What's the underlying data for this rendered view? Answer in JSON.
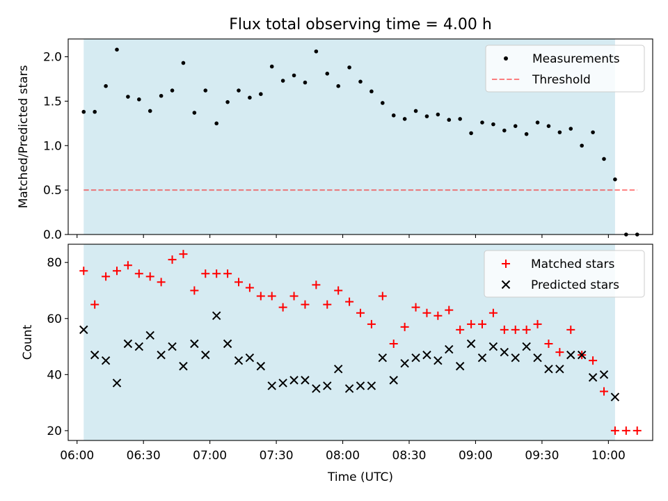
{
  "chart_data": [
    {
      "type": "scatter",
      "title": "Flux total observing time = 4.00 h",
      "ylabel": "Matched/Predicted stars",
      "ylim": [
        0,
        2.2
      ],
      "yticks": [
        "0.0",
        "0.5",
        "1.0",
        "1.5",
        "2.0"
      ],
      "shaded_span": [
        "06:03",
        "10:03"
      ],
      "shade_color": "#add8e6",
      "threshold": 0.5,
      "series": [
        {
          "name": "Measurements",
          "color": "#000000",
          "marker": "dot",
          "points": [
            [
              "06:03",
              1.38
            ],
            [
              "06:08",
              1.38
            ],
            [
              "06:13",
              1.67
            ],
            [
              "06:18",
              2.08
            ],
            [
              "06:23",
              1.55
            ],
            [
              "06:28",
              1.52
            ],
            [
              "06:33",
              1.39
            ],
            [
              "06:38",
              1.56
            ],
            [
              "06:43",
              1.62
            ],
            [
              "06:48",
              1.93
            ],
            [
              "06:53",
              1.37
            ],
            [
              "06:58",
              1.62
            ],
            [
              "07:03",
              1.25
            ],
            [
              "07:08",
              1.49
            ],
            [
              "07:13",
              1.62
            ],
            [
              "07:18",
              1.54
            ],
            [
              "07:23",
              1.58
            ],
            [
              "07:28",
              1.89
            ],
            [
              "07:33",
              1.73
            ],
            [
              "07:38",
              1.79
            ],
            [
              "07:43",
              1.71
            ],
            [
              "07:48",
              2.06
            ],
            [
              "07:53",
              1.81
            ],
            [
              "07:58",
              1.67
            ],
            [
              "08:03",
              1.88
            ],
            [
              "08:08",
              1.72
            ],
            [
              "08:13",
              1.61
            ],
            [
              "08:18",
              1.48
            ],
            [
              "08:23",
              1.34
            ],
            [
              "08:28",
              1.3
            ],
            [
              "08:33",
              1.39
            ],
            [
              "08:38",
              1.33
            ],
            [
              "08:43",
              1.35
            ],
            [
              "08:48",
              1.29
            ],
            [
              "08:53",
              1.3
            ],
            [
              "08:58",
              1.14
            ],
            [
              "09:03",
              1.26
            ],
            [
              "09:08",
              1.24
            ],
            [
              "09:13",
              1.17
            ],
            [
              "09:18",
              1.22
            ],
            [
              "09:23",
              1.13
            ],
            [
              "09:28",
              1.26
            ],
            [
              "09:33",
              1.22
            ],
            [
              "09:38",
              1.15
            ],
            [
              "09:43",
              1.19
            ],
            [
              "09:48",
              1.0
            ],
            [
              "09:53",
              1.15
            ],
            [
              "09:58",
              0.85
            ],
            [
              "10:03",
              0.62
            ],
            [
              "10:08",
              0.0
            ],
            [
              "10:13",
              0.0
            ]
          ]
        },
        {
          "name": "Threshold",
          "color": "#ff0000",
          "opacity": 0.5,
          "style": "dashed",
          "points": [
            [
              "06:03",
              0.5
            ],
            [
              "10:13",
              0.5
            ]
          ]
        }
      ],
      "legend": "top-right"
    },
    {
      "type": "scatter",
      "xlabel": "Time (UTC)",
      "ylabel": "Count",
      "ylim": [
        16.5,
        86.5
      ],
      "yticks": [
        "20",
        "40",
        "60",
        "80"
      ],
      "xticks": [
        "06:00",
        "06:30",
        "07:00",
        "07:30",
        "08:00",
        "08:30",
        "09:00",
        "09:30",
        "10:00"
      ],
      "x": [
        "06:03",
        "06:08",
        "06:13",
        "06:18",
        "06:23",
        "06:28",
        "06:33",
        "06:38",
        "06:43",
        "06:48",
        "06:53",
        "06:58",
        "07:03",
        "07:08",
        "07:13",
        "07:18",
        "07:23",
        "07:28",
        "07:33",
        "07:38",
        "07:43",
        "07:48",
        "07:53",
        "07:58",
        "08:03",
        "08:08",
        "08:13",
        "08:18",
        "08:23",
        "08:28",
        "08:33",
        "08:38",
        "08:43",
        "08:48",
        "08:53",
        "08:58",
        "09:03",
        "09:08",
        "09:13",
        "09:18",
        "09:23",
        "09:28",
        "09:33",
        "09:38",
        "09:43",
        "09:48",
        "09:53",
        "09:58",
        "10:03",
        "10:08",
        "10:13"
      ],
      "series": [
        {
          "name": "Matched stars",
          "color": "#ff0000",
          "marker": "plus",
          "values": [
            77,
            65,
            75,
            77,
            79,
            76,
            75,
            73,
            81,
            83,
            70,
            76,
            76,
            76,
            73,
            71,
            68,
            68,
            64,
            68,
            65,
            72,
            65,
            70,
            66,
            62,
            58,
            68,
            51,
            57,
            64,
            62,
            61,
            63,
            56,
            58,
            58,
            62,
            56,
            56,
            56,
            58,
            51,
            48,
            56,
            47,
            45,
            34,
            20,
            20,
            20
          ]
        },
        {
          "name": "Predicted stars",
          "color": "#000000",
          "marker": "x",
          "values": [
            56,
            47,
            45,
            37,
            51,
            50,
            54,
            47,
            50,
            43,
            51,
            47,
            61,
            51,
            45,
            46,
            43,
            36,
            37,
            38,
            38,
            35,
            36,
            42,
            35,
            36,
            36,
            46,
            38,
            44,
            46,
            47,
            45,
            49,
            43,
            51,
            46,
            50,
            48,
            46,
            50,
            46,
            42,
            42,
            47,
            47,
            39,
            40,
            32,
            null,
            null
          ]
        }
      ],
      "legend": "top-right"
    }
  ]
}
